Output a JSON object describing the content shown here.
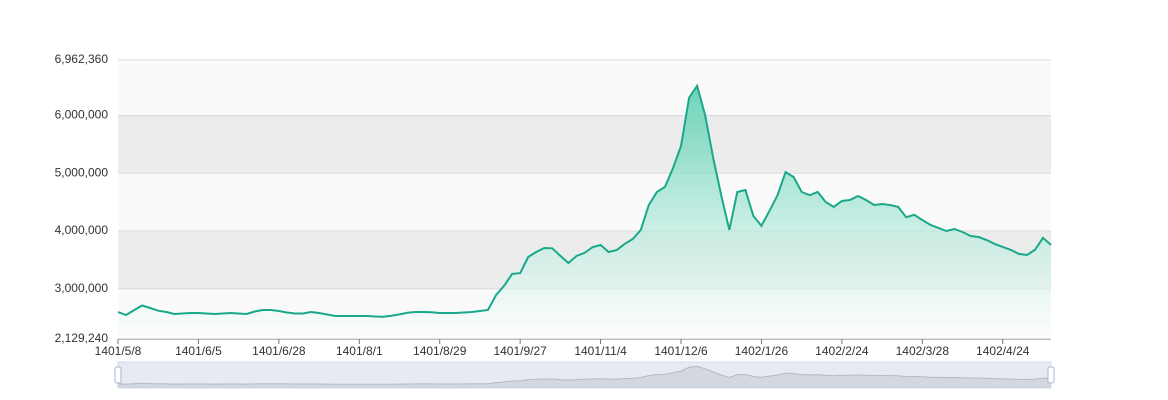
{
  "chart_data": {
    "type": "area",
    "color": "#1aa88a",
    "area_color": "#5ccfb0",
    "grid": true,
    "categories": [
      "1401/5/8",
      null,
      null,
      null,
      null,
      null,
      null,
      null,
      null,
      null,
      "1401/6/5",
      null,
      null,
      null,
      null,
      null,
      null,
      null,
      null,
      null,
      "1401/6/28",
      null,
      null,
      null,
      null,
      null,
      null,
      null,
      null,
      null,
      "1401/8/1",
      null,
      null,
      null,
      null,
      null,
      null,
      null,
      null,
      null,
      "1401/8/29",
      null,
      null,
      null,
      null,
      null,
      null,
      null,
      null,
      null,
      "1401/9/27",
      null,
      null,
      null,
      null,
      null,
      null,
      null,
      null,
      null,
      "1401/11/4",
      null,
      null,
      null,
      null,
      null,
      null,
      null,
      null,
      null,
      "1401/12/6",
      null,
      null,
      null,
      null,
      null,
      null,
      null,
      null,
      null,
      "1402/1/26",
      null,
      null,
      null,
      null,
      null,
      null,
      null,
      null,
      null,
      "1402/2/24",
      null,
      null,
      null,
      null,
      null,
      null,
      null,
      null,
      null,
      "1402/3/28",
      null,
      null,
      null,
      null,
      null,
      null,
      null,
      null,
      null,
      "1402/4/24",
      null,
      null,
      null,
      null,
      null,
      null
    ],
    "values": [
      2597000,
      2545000,
      2630000,
      2710000,
      2667000,
      2620000,
      2597000,
      2562000,
      2571000,
      2580000,
      2580000,
      2571000,
      2562000,
      2571000,
      2580000,
      2571000,
      2562000,
      2606000,
      2632000,
      2632000,
      2614000,
      2588000,
      2571000,
      2571000,
      2597000,
      2580000,
      2554000,
      2528000,
      2528000,
      2528000,
      2528000,
      2528000,
      2519000,
      2514000,
      2533000,
      2556000,
      2583000,
      2597000,
      2597000,
      2592000,
      2580000,
      2580000,
      2580000,
      2588000,
      2597000,
      2614000,
      2632000,
      2890000,
      3050000,
      3256000,
      3270000,
      3550000,
      3637000,
      3706000,
      3700000,
      3568000,
      3446000,
      3567000,
      3620000,
      3720000,
      3758000,
      3637000,
      3670000,
      3776000,
      3862000,
      4020000,
      4450000,
      4676000,
      4763000,
      5090000,
      5470000,
      6310000,
      6514000,
      6010000,
      5266000,
      4620000,
      4020000,
      4676000,
      4710000,
      4260000,
      4090000,
      4350000,
      4620000,
      5020000,
      4935000,
      4676000,
      4620000,
      4676000,
      4500000,
      4417000,
      4520000,
      4538000,
      4607000,
      4538000,
      4450000,
      4468000,
      4450000,
      4417000,
      4240000,
      4280000,
      4190000,
      4105000,
      4053000,
      4000000,
      4035000,
      3983000,
      3914000,
      3897000,
      3845000,
      3776000,
      3724000,
      3672000,
      3603000,
      3585000,
      3672000,
      3880000,
      3758000
    ],
    "ylim": [
      2129240,
      6962360
    ],
    "yticks": [
      {
        "value": 2129240,
        "label": "2,129,240"
      },
      {
        "value": 3000000,
        "label": "3,000,000"
      },
      {
        "value": 4000000,
        "label": "4,000,000"
      },
      {
        "value": 5000000,
        "label": "5,000,000"
      },
      {
        "value": 6000000,
        "label": "6,000,000"
      },
      {
        "value": 6962360,
        "label": "6,962,360"
      }
    ]
  }
}
